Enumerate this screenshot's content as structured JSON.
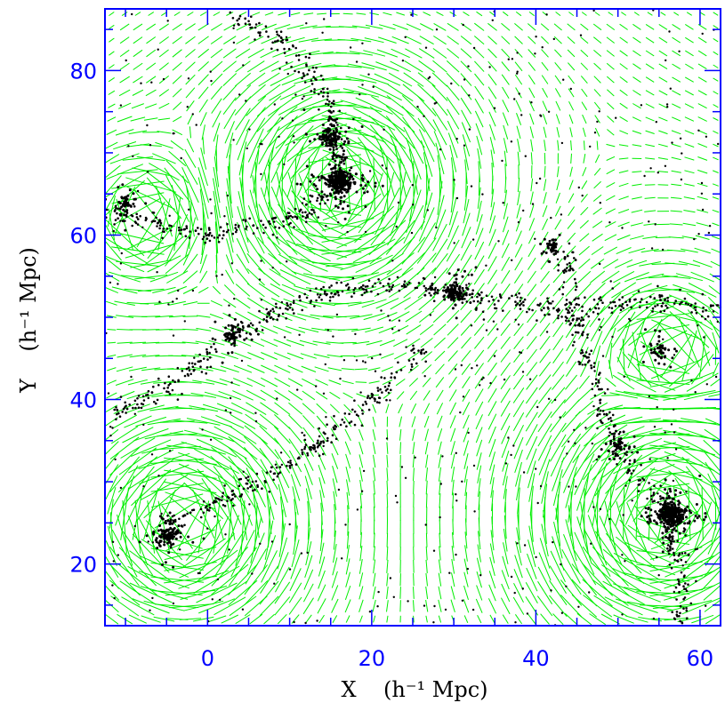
{
  "chart_data": {
    "type": "scatter",
    "xlabel": "X    (h⁻¹ Mpc)",
    "ylabel": "Y    (h⁻¹ Mpc)",
    "xlim": [
      -12.5,
      62.5
    ],
    "ylim": [
      12.5,
      87.5
    ],
    "x_ticks": [
      "0",
      "20",
      "40",
      "60"
    ],
    "y_ticks": [
      "20",
      "40",
      "60",
      "80"
    ],
    "grid": false,
    "colors": {
      "axes": "#0000ff",
      "vectors": "#00ee00",
      "points": "#000000"
    },
    "series": [
      {
        "kind": "galaxy-points",
        "clusters": [
          {
            "x": 16.0,
            "y": 66.5,
            "size": "large"
          },
          {
            "x": 15.0,
            "y": 72.0,
            "size": "medium"
          },
          {
            "x": 56.5,
            "y": 26.0,
            "size": "large"
          },
          {
            "x": 3.0,
            "y": 48.0,
            "size": "small"
          },
          {
            "x": -5.0,
            "y": 23.5,
            "size": "medium"
          },
          {
            "x": 30.0,
            "y": 53.0,
            "size": "medium"
          },
          {
            "x": 55.0,
            "y": 46.0,
            "size": "small"
          },
          {
            "x": 42.0,
            "y": 58.5,
            "size": "small"
          },
          {
            "x": 50.0,
            "y": 34.5,
            "size": "small"
          },
          {
            "x": -10.0,
            "y": 64.0,
            "size": "small"
          }
        ],
        "filaments": [
          [
            [
              3,
              87
            ],
            [
              10,
              83
            ],
            [
              15,
              76
            ],
            [
              16,
              66
            ],
            [
              11,
              62
            ],
            [
              0,
              60
            ],
            [
              -12,
              63
            ]
          ],
          [
            [
              -12,
              38
            ],
            [
              -4,
              42
            ],
            [
              5,
              49
            ],
            [
              14,
              53
            ],
            [
              24,
              54
            ],
            [
              34,
              52
            ],
            [
              44,
              51
            ],
            [
              56,
              52
            ],
            [
              62,
              51
            ]
          ],
          [
            [
              -5,
              25
            ],
            [
              3,
              28
            ],
            [
              10,
              32
            ],
            [
              20,
              40
            ],
            [
              26,
              46
            ]
          ],
          [
            [
              44,
              58
            ],
            [
              44,
              52
            ],
            [
              48,
              40
            ],
            [
              50,
              34
            ],
            [
              56,
              26
            ],
            [
              58,
              18
            ],
            [
              58,
              12
            ]
          ]
        ]
      },
      {
        "kind": "shear-vectors",
        "circular_regions": [
          {
            "x": 16,
            "y": 66,
            "r": 10
          },
          {
            "x": -8,
            "y": 62,
            "r": 6
          },
          {
            "x": -3,
            "y": 25,
            "r": 10
          },
          {
            "x": 56,
            "y": 26,
            "r": 12
          },
          {
            "x": 56,
            "y": 46,
            "r": 6
          }
        ]
      }
    ]
  }
}
